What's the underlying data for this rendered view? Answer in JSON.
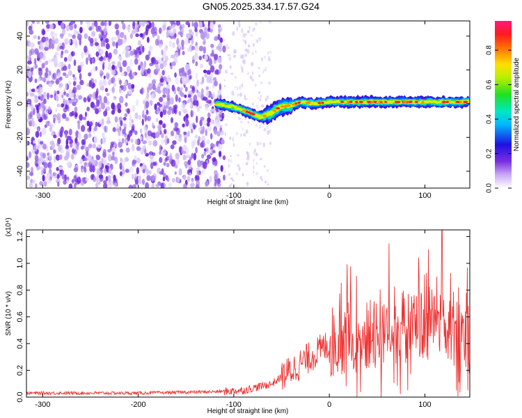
{
  "title": "GN05.2025.334.17.57.G24",
  "chart_data": [
    {
      "type": "heatmap",
      "xlabel": "Height of straight line (km)",
      "ylabel": "Frequency (Hz)",
      "xlim": [
        -317,
        147
      ],
      "ylim": [
        -50,
        49
      ],
      "x_ticks": [
        -300,
        -200,
        -100,
        0,
        100
      ],
      "y_ticks": [
        -40,
        -20,
        0,
        20,
        40
      ],
      "colorbar": {
        "label": "Normalized spectral amplitude",
        "range": [
          0,
          0.97
        ],
        "ticks": [
          "0.0",
          "0.2",
          "0.4",
          "0.6",
          "0.8"
        ]
      },
      "signal_track": [
        {
          "x": -118,
          "y": 0
        },
        {
          "x": -100,
          "y": -2
        },
        {
          "x": -85,
          "y": -5
        },
        {
          "x": -72,
          "y": -8
        },
        {
          "x": -62,
          "y": -6
        },
        {
          "x": -52,
          "y": -2
        },
        {
          "x": -40,
          "y": -1
        },
        {
          "x": -30,
          "y": 1
        },
        {
          "x": -15,
          "y": 0
        },
        {
          "x": 0,
          "y": 1
        },
        {
          "x": 20,
          "y": 1
        },
        {
          "x": 50,
          "y": 1
        },
        {
          "x": 80,
          "y": 1
        },
        {
          "x": 110,
          "y": 1
        },
        {
          "x": 147,
          "y": 1
        }
      ],
      "noise_region_x": [
        -317,
        -110
      ],
      "faint_scatter_x": [
        -110,
        -60
      ]
    },
    {
      "type": "line",
      "xlabel": "Height of straight line (km)",
      "ylabel": "SNR (10 * v/v)",
      "y_scale_label": "(x10⁴)",
      "xlim": [
        -317,
        147
      ],
      "ylim": [
        0,
        1.25
      ],
      "x_ticks": [
        -300,
        -200,
        -100,
        0,
        100
      ],
      "y_ticks": [
        "0.0",
        "0.2",
        "0.4",
        "0.6",
        "0.8",
        "1.0",
        "1.2"
      ],
      "series_color": "#ee3333",
      "trend": [
        {
          "x": -317,
          "y": 0.03
        },
        {
          "x": -200,
          "y": 0.03
        },
        {
          "x": -120,
          "y": 0.04
        },
        {
          "x": -90,
          "y": 0.05
        },
        {
          "x": -60,
          "y": 0.1
        },
        {
          "x": -40,
          "y": 0.2
        },
        {
          "x": -20,
          "y": 0.3
        },
        {
          "x": 0,
          "y": 0.4
        },
        {
          "x": 20,
          "y": 0.45
        },
        {
          "x": 40,
          "y": 0.45
        },
        {
          "x": 60,
          "y": 0.5
        },
        {
          "x": 80,
          "y": 0.52
        },
        {
          "x": 100,
          "y": 0.55
        },
        {
          "x": 120,
          "y": 0.55
        },
        {
          "x": 147,
          "y": 0.45
        }
      ],
      "peak": {
        "x": 118,
        "y": 1.25
      }
    }
  ]
}
